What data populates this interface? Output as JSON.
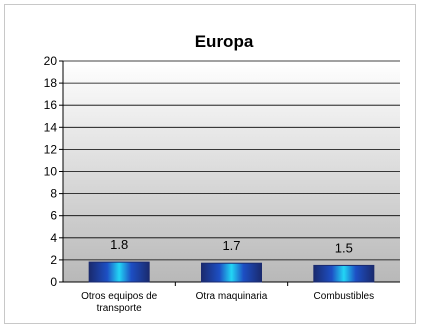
{
  "chart_data": {
    "type": "bar",
    "title": "Europa",
    "categories": [
      [
        "Otros equipos de",
        "transporte"
      ],
      [
        "Otra maquinaria"
      ],
      [
        "Combustibles"
      ]
    ],
    "values": [
      1.8,
      1.7,
      1.5
    ],
    "data_labels": [
      "1.8",
      "1.7",
      "1.5"
    ],
    "ylim": [
      0,
      20
    ],
    "yticks": [
      0,
      2,
      4,
      6,
      8,
      10,
      12,
      14,
      16,
      18,
      20
    ],
    "grid": true,
    "legend": "none",
    "colors": {
      "bar_edge": "#1a2a6e",
      "bar_center": "#22d6f5",
      "bar_dark": "#1d4fc4",
      "plot_bg_top": "#ffffff",
      "plot_bg_bottom": "#b8b8b8",
      "gridline": "#000000"
    }
  }
}
